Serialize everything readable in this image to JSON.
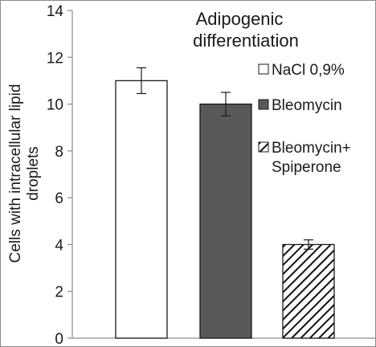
{
  "chart_data": {
    "type": "bar",
    "title_lines": [
      "Adipogenic",
      "differentiation"
    ],
    "xlabel": "",
    "ylabel_lines": [
      "Cells with intracellular lipid",
      "droplets"
    ],
    "ylim": [
      0,
      14
    ],
    "yticks": [
      0,
      2,
      4,
      6,
      8,
      10,
      12,
      14
    ],
    "grid": false,
    "legend_position": "right",
    "series": [
      {
        "name": "NaCl 0,9%",
        "legend_lines": [
          "NaCl 0,9%"
        ],
        "value": 11.0,
        "error": 0.55,
        "fill": "#ffffff",
        "pattern": "none"
      },
      {
        "name": "Bleomycin",
        "legend_lines": [
          "Bleomycin"
        ],
        "value": 10.0,
        "error": 0.5,
        "fill": "#595959",
        "pattern": "none"
      },
      {
        "name": "Bleomycin+ Spiperone",
        "legend_lines": [
          "Bleomycin+",
          "Spiperone"
        ],
        "value": 4.0,
        "error": 0.2,
        "fill": "#ffffff",
        "pattern": "diagonal"
      }
    ]
  }
}
